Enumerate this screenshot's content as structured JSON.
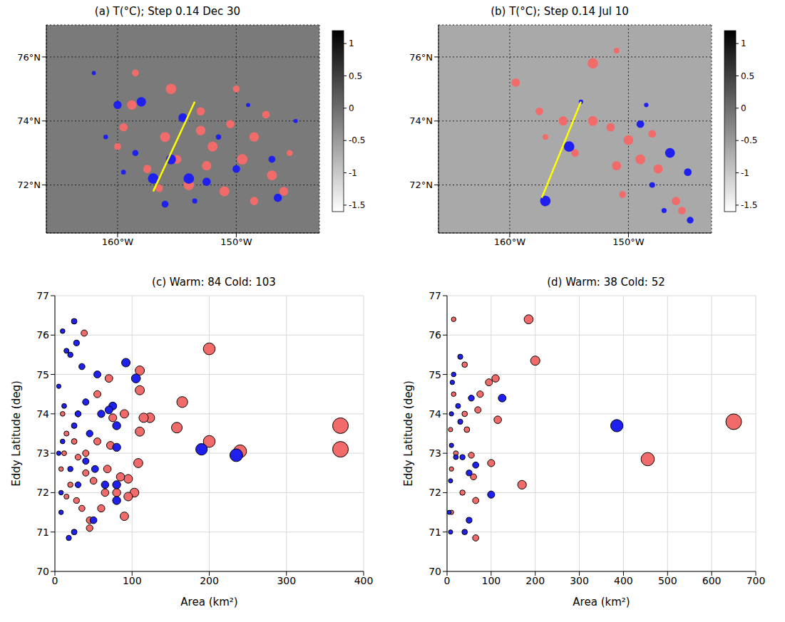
{
  "chart_data": [
    {
      "type": "scatter",
      "title": "(a) T(°C); Step 0.14 Dec 30",
      "xlim": [
        -166,
        -143
      ],
      "xticks": [
        {
          "value": -160,
          "label": "160°W"
        },
        {
          "value": -150,
          "label": "150°W"
        }
      ],
      "ylim": [
        70.5,
        77
      ],
      "yticks": [
        {
          "value": 72,
          "label": "72°N"
        },
        {
          "value": 74,
          "label": "74°N"
        },
        {
          "value": 76,
          "label": "76°N"
        }
      ],
      "grid": true,
      "colorbar": {
        "range": [
          -1.6,
          1.2
        ],
        "ticks": [
          1,
          0.5,
          0,
          -0.5,
          -1,
          -1.5
        ]
      },
      "transect": {
        "color": "#ffff00",
        "x": [
          -157,
          -153.5
        ],
        "y": [
          71.8,
          74.6
        ]
      },
      "series": [
        {
          "name": "Warm",
          "color": "#f26b6b",
          "x": [
            -159.5,
            -158.8,
            -156,
            -155,
            -153,
            -152,
            -150.5,
            -149.5,
            -148.5,
            -147,
            -146,
            -155.5,
            -153,
            -150,
            -157.5,
            -154,
            -151,
            -148.5,
            -158.5,
            -147.5,
            -152.5,
            -145.5,
            -156.5,
            -160
          ],
          "y": [
            73.8,
            74.5,
            73.5,
            72.8,
            73.7,
            73.2,
            73.9,
            72.8,
            73.5,
            72.3,
            71.8,
            75.0,
            74.3,
            75.0,
            72.5,
            72.0,
            71.8,
            71.5,
            75.5,
            74.2,
            72.6,
            73.0,
            71.9,
            73.2
          ],
          "area": [
            60,
            80,
            90,
            70,
            80,
            90,
            60,
            100,
            80,
            90,
            70,
            100,
            60,
            40,
            60,
            100,
            90,
            60,
            40,
            50,
            80,
            30,
            50,
            40
          ]
        },
        {
          "name": "Cold",
          "color": "#1f1fee",
          "x": [
            -160,
            -158,
            -154.5,
            -155.5,
            -157,
            -154,
            -152.5,
            -150,
            -147,
            -149,
            -158.5,
            -161,
            -146.5,
            -153.5,
            -156,
            -145,
            -159.5,
            -151.5,
            -162
          ],
          "y": [
            74.5,
            74.6,
            74.1,
            72.8,
            72.2,
            72.2,
            72.1,
            72.5,
            72.8,
            74.5,
            73.0,
            73.5,
            71.6,
            71.5,
            71.4,
            74.0,
            72.4,
            73.5,
            75.5
          ],
          "area": [
            60,
            80,
            70,
            90,
            100,
            100,
            60,
            50,
            40,
            10,
            30,
            15,
            60,
            20,
            40,
            10,
            15,
            20,
            10
          ]
        }
      ]
    },
    {
      "type": "scatter",
      "title": "(b) T(°C); Step 0.14 Jul 10",
      "xlim": [
        -166,
        -143
      ],
      "xticks": [
        {
          "value": -160,
          "label": "160°W"
        },
        {
          "value": -150,
          "label": "150°W"
        }
      ],
      "ylim": [
        70.5,
        77
      ],
      "yticks": [
        {
          "value": 72,
          "label": "72°N"
        },
        {
          "value": 74,
          "label": "74°N"
        },
        {
          "value": 76,
          "label": "76°N"
        }
      ],
      "grid": true,
      "colorbar": {
        "range": [
          -1.6,
          1.2
        ],
        "ticks": [
          1,
          0.5,
          0,
          -0.5,
          -1,
          -1.5
        ]
      },
      "transect": {
        "color": "#ffff00",
        "x": [
          -157.3,
          -154
        ],
        "y": [
          71.6,
          74.6
        ]
      },
      "series": [
        {
          "name": "Warm",
          "color": "#f26b6b",
          "x": [
            -159.5,
            -157.5,
            -155.5,
            -153,
            -151.5,
            -150,
            -149,
            -151,
            -154.5,
            -153,
            -147.5,
            -146,
            -150.5,
            -157,
            -148,
            -151,
            -145.5
          ],
          "y": [
            75.2,
            74.3,
            74.0,
            74.0,
            73.8,
            73.4,
            72.8,
            72.6,
            73.0,
            75.8,
            72.5,
            71.5,
            71.7,
            73.5,
            73.6,
            76.2,
            71.2
          ],
          "area": [
            50,
            40,
            60,
            70,
            50,
            70,
            70,
            60,
            40,
            80,
            60,
            50,
            30,
            20,
            40,
            20,
            40
          ]
        },
        {
          "name": "Cold",
          "color": "#1f1fee",
          "x": [
            -155,
            -149,
            -146.5,
            -145,
            -148,
            -157,
            -148.5,
            -144.8,
            -154,
            -147
          ],
          "y": [
            73.2,
            73.9,
            73.0,
            72.4,
            72.0,
            71.5,
            74.5,
            70.9,
            74.6,
            71.2
          ],
          "area": [
            80,
            40,
            70,
            40,
            20,
            80,
            10,
            30,
            10,
            15
          ]
        }
      ]
    },
    {
      "type": "scatter",
      "title": "(c) Warm: 84 Cold: 103",
      "xlabel": "Area (km²)",
      "ylabel": "Eddy Latitude (deg)",
      "xlim": [
        0,
        400
      ],
      "xticks": [
        0,
        100,
        200,
        300,
        400
      ],
      "ylim": [
        70,
        77
      ],
      "yticks": [
        70,
        71,
        72,
        73,
        74,
        75,
        76,
        77
      ],
      "grid": true,
      "series": [
        {
          "name": "Warm",
          "color": "#f26b6b",
          "x": [
            370,
            370,
            240,
            200,
            200,
            165,
            158,
            123,
            115,
            110,
            110,
            110,
            108,
            103,
            95,
            95,
            90,
            90,
            85,
            80,
            75,
            72,
            70,
            68,
            65,
            60,
            55,
            55,
            50,
            45,
            45,
            40,
            40,
            38,
            35,
            30,
            30,
            28,
            25,
            20,
            15,
            15,
            12,
            10,
            8
          ],
          "y": [
            73.7,
            73.1,
            73.05,
            73.3,
            75.65,
            74.3,
            73.65,
            73.9,
            73.9,
            75.1,
            74.6,
            73.55,
            72.75,
            72.0,
            72.35,
            71.9,
            71.4,
            74.0,
            72.4,
            72.0,
            73.9,
            73.2,
            74.9,
            72.6,
            72.0,
            71.6,
            74.5,
            73.3,
            72.3,
            71.3,
            71.1,
            72.5,
            73.0,
            76.05,
            71.6,
            72.9,
            74.0,
            71.8,
            73.3,
            72.2,
            73.5,
            71.9,
            73.0,
            74.0,
            72.6
          ]
        },
        {
          "name": "Cold",
          "color": "#1f1fee",
          "x": [
            235,
            190,
            105,
            92,
            80,
            80,
            80,
            80,
            75,
            70,
            65,
            60,
            55,
            52,
            50,
            45,
            40,
            35,
            30,
            30,
            25,
            25,
            20,
            20,
            18,
            15,
            12,
            10,
            10,
            8,
            8,
            5,
            5,
            25,
            40,
            28
          ],
          "y": [
            72.95,
            73.1,
            74.9,
            75.3,
            73.7,
            73.15,
            72.2,
            71.8,
            74.2,
            74.1,
            72.2,
            74.0,
            75.0,
            72.6,
            71.3,
            73.5,
            72.8,
            75.2,
            74.0,
            72.2,
            76.35,
            71.0,
            75.5,
            72.6,
            70.85,
            75.6,
            74.2,
            76.1,
            73.3,
            72.0,
            71.5,
            74.7,
            73.0,
            73.7,
            74.3,
            75.8
          ]
        }
      ]
    },
    {
      "type": "scatter",
      "title": "(d) Warm: 38 Cold: 52",
      "xlabel": "Area (km²)",
      "ylabel": "Eddy Latitude (deg)",
      "xlim": [
        0,
        700
      ],
      "xticks": [
        0,
        100,
        200,
        300,
        400,
        500,
        600,
        700
      ],
      "ylim": [
        70,
        77
      ],
      "yticks": [
        70,
        71,
        72,
        73,
        74,
        75,
        76,
        77
      ],
      "grid": true,
      "series": [
        {
          "name": "Warm",
          "color": "#f26b6b",
          "x": [
            650,
            455,
            200,
            185,
            170,
            115,
            110,
            95,
            100,
            75,
            70,
            65,
            65,
            60,
            55,
            40,
            40,
            45,
            35,
            20,
            15,
            15,
            10,
            10,
            8
          ],
          "y": [
            73.8,
            72.85,
            75.35,
            76.4,
            72.2,
            73.85,
            74.9,
            74.8,
            72.75,
            74.5,
            74.1,
            71.8,
            70.85,
            72.4,
            72.95,
            75.25,
            74.0,
            73.6,
            72.0,
            73.0,
            76.4,
            74.5,
            71.5,
            72.6,
            73.6
          ]
        },
        {
          "name": "Cold",
          "color": "#1f1fee",
          "x": [
            385,
            125,
            100,
            65,
            55,
            50,
            50,
            40,
            30,
            25,
            20,
            15,
            10,
            10,
            8,
            5,
            12,
            8,
            30,
            35
          ],
          "y": [
            73.7,
            74.4,
            71.95,
            72.7,
            74.4,
            72.5,
            71.3,
            71.0,
            75.45,
            74.2,
            72.9,
            75.0,
            74.0,
            73.2,
            72.3,
            71.5,
            74.8,
            71.0,
            73.8,
            72.9
          ]
        }
      ]
    }
  ]
}
